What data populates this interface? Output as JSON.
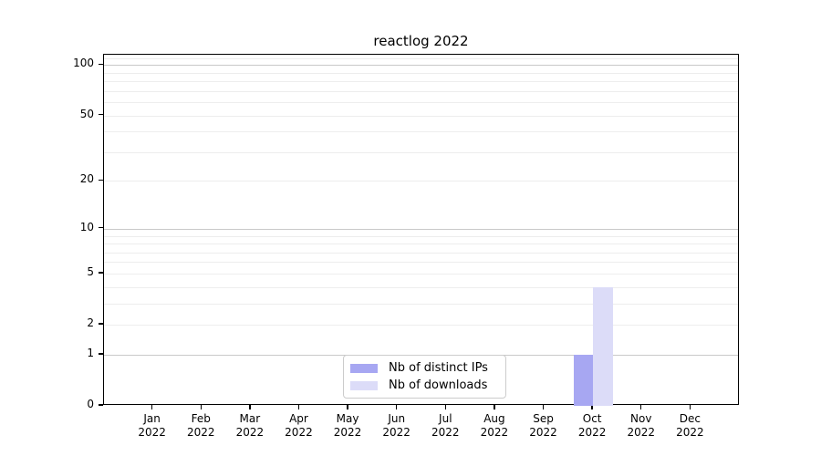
{
  "figure": {
    "background": "#ffffff"
  },
  "chart_data": {
    "type": "bar",
    "title": "reactlog 2022",
    "categories": [
      "Jan 2022",
      "Feb 2022",
      "Mar 2022",
      "Apr 2022",
      "May 2022",
      "Jun 2022",
      "Jul 2022",
      "Aug 2022",
      "Sep 2022",
      "Oct 2022",
      "Nov 2022",
      "Dec 2022"
    ],
    "series": [
      {
        "name": "Nb of distinct IPs",
        "color": "#a7a7f2",
        "values": [
          0,
          0,
          0,
          0,
          0,
          0,
          0,
          0,
          0,
          1,
          0,
          0
        ]
      },
      {
        "name": "Nb of downloads",
        "color": "#dcdcf8",
        "values": [
          0,
          0,
          0,
          0,
          0,
          0,
          0,
          0,
          0,
          4,
          0,
          0
        ]
      }
    ],
    "xlabel": "",
    "ylabel": "",
    "y_scale": "log1p",
    "y_max": 115,
    "y_ticks": [
      0,
      1,
      2,
      5,
      10,
      20,
      50,
      100
    ],
    "major_gridlines": [
      1,
      10,
      100
    ],
    "minor_gridlines": [
      2,
      3,
      4,
      5,
      6,
      7,
      8,
      9,
      20,
      30,
      40,
      50,
      60,
      70,
      80,
      90,
      110
    ],
    "grid": true,
    "legend_position": "bottom-center",
    "colors": {
      "major_grid": "#c9c9c9",
      "minor_grid": "#ededed",
      "spine": "#000000",
      "text": "#000000",
      "legend_border": "#cccccc"
    }
  }
}
